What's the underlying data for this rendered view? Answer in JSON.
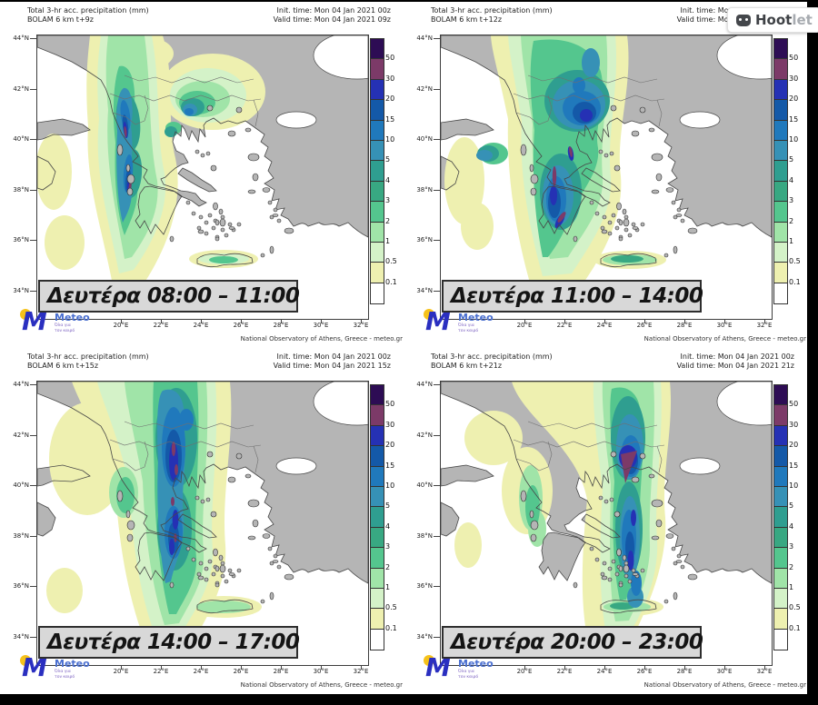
{
  "watermark": {
    "bold": "Hoot",
    "light": "let"
  },
  "credit": "National Observatory of Athens, Greece - meteo.gr",
  "logo": {
    "monogram": "M",
    "brand": "Meteo",
    "tagline1": "Όλα για",
    "tagline2": "τον καιρό"
  },
  "colorbar": {
    "boundary_labels": [
      "50",
      "30",
      "20",
      "15",
      "10",
      "5",
      "4",
      "3",
      "2",
      "1",
      "0.5",
      "0.1"
    ],
    "colors_top_to_bottom": [
      "#2d0c54",
      "#7c3a68",
      "#2531b4",
      "#1459a8",
      "#2079bc",
      "#3691b6",
      "#2f9e90",
      "#38a882",
      "#54c68e",
      "#a0e4a8",
      "#d4f2c8",
      "#eef0b0",
      "#ffffff"
    ]
  },
  "axes": {
    "lat": [
      "44°N",
      "42°N",
      "40°N",
      "38°N",
      "36°N",
      "34°N"
    ],
    "lon": [
      "20°E",
      "22°E",
      "24°E",
      "26°E",
      "28°E",
      "30°E",
      "32°E"
    ]
  },
  "map_colors": {
    "land": "#b5b5b5",
    "sea": "#ffffff",
    "coast": "#484848",
    "border": "#6f6f6f"
  },
  "panels": [
    {
      "title": "Total 3-hr acc. precipitation (mm)",
      "model": "BOLAM 6 km t+9z",
      "init_time": "Init. time: Mon 04 Jan 2021 00z",
      "valid_time": "Valid time: Mon 04 Jan 2021 09z",
      "time_label": "Δευτέρα 08:00 – 11:00"
    },
    {
      "title": "Total 3-hr acc. precipitation (mm)",
      "model": "BOLAM 6 km t+12z",
      "init_time": "Init. time: Mon 04 Jan 2021 00z",
      "valid_time": "Valid time: Mon 04 Jan 2021 12z",
      "time_label": "Δευτέρα 11:00 – 14:00"
    },
    {
      "title": "Total 3-hr acc. precipitation (mm)",
      "model": "BOLAM 6 km t+15z",
      "init_time": "Init. time: Mon 04 Jan 2021 00z",
      "valid_time": "Valid time: Mon 04 Jan 2021 15z",
      "time_label": "Δευτέρα 14:00 – 17:00"
    },
    {
      "title": "Total 3-hr acc. precipitation (mm)",
      "model": "BOLAM 6 km t+21z",
      "init_time": "Init. time: Mon 04 Jan 2021 00z",
      "valid_time": "Valid time: Mon 04 Jan 2021 21z",
      "time_label": "Δευτέρα 20:00 – 23:00"
    }
  ]
}
